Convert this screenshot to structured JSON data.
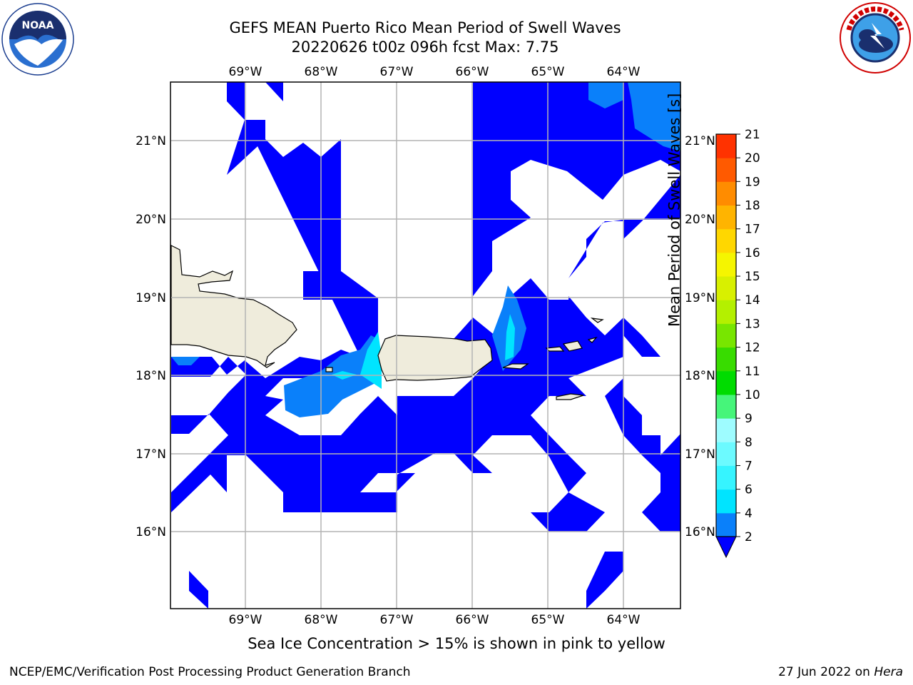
{
  "header": {
    "title_line1": "GEFS MEAN Puerto Rico Mean Period of Swell Waves",
    "title_line2": "20220626 t00z 096h fcst   Max: 7.75"
  },
  "logos": {
    "left": {
      "icon": "noaa-logo",
      "text": "NOAA"
    },
    "right": {
      "icon": "nws-logo",
      "text": "NATIONAL WEATHER SERVICE"
    }
  },
  "map": {
    "lon_range": [
      -70.0,
      -63.25
    ],
    "lat_range": [
      15.0,
      21.75
    ],
    "lon_ticks": [
      {
        "value": -69,
        "label": "69°W"
      },
      {
        "value": -68,
        "label": "68°W"
      },
      {
        "value": -67,
        "label": "67°W"
      },
      {
        "value": -66,
        "label": "66°W"
      },
      {
        "value": -65,
        "label": "65°W"
      },
      {
        "value": -64,
        "label": "64°W"
      }
    ],
    "lat_ticks": [
      {
        "value": 21,
        "label": "21°N"
      },
      {
        "value": 20,
        "label": "20°N"
      },
      {
        "value": 19,
        "label": "19°N"
      },
      {
        "value": 18,
        "label": "18°N"
      },
      {
        "value": 17,
        "label": "17°N"
      },
      {
        "value": 16,
        "label": "16°N"
      }
    ],
    "land_color": "#efecdc",
    "grid_color": "#b4b4b4"
  },
  "colorbar": {
    "label": "Mean Period of Swell Waves [s]",
    "levels": [
      2,
      4,
      6,
      7,
      8,
      9,
      10,
      11,
      12,
      13,
      14,
      15,
      16,
      17,
      18,
      19,
      20,
      21
    ],
    "tick_labels": [
      "2",
      "4",
      "6",
      "7",
      "8",
      "9",
      "10",
      "11",
      "12",
      "13",
      "14",
      "15",
      "16",
      "17",
      "18",
      "19",
      "20",
      "21"
    ],
    "colors": [
      "#0a80fa",
      "#00e4ff",
      "#36f4ff",
      "#6cfaff",
      "#9efcff",
      "#46f57a",
      "#00dc00",
      "#38dc00",
      "#78e600",
      "#b4f000",
      "#d8f000",
      "#f5f500",
      "#ffd700",
      "#ffb400",
      "#ff8c00",
      "#ff5a00",
      "#ff3200",
      "#ff0000"
    ],
    "under_color": "#0000ff"
  },
  "caption": "Sea Ice Concentration > 15% is shown in pink to yellow",
  "footer": {
    "left": "NCEP/EMC/Verification Post Processing Product Generation Branch",
    "right_prefix": "27 Jun 2022 on ",
    "right_host": "Hera"
  }
}
